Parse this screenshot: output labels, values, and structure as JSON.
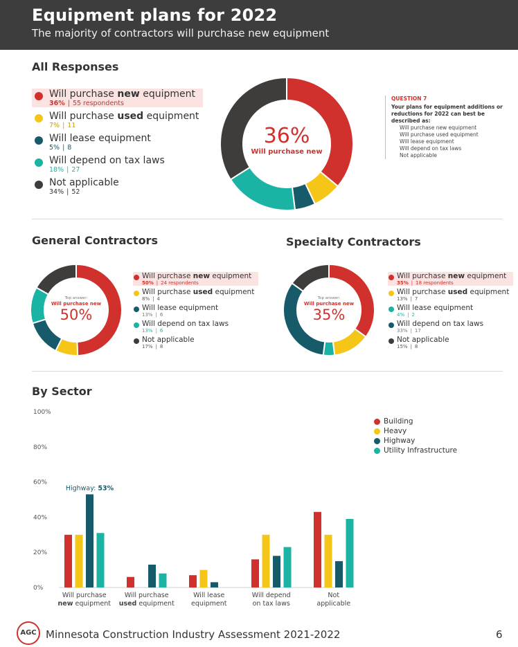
{
  "header": {
    "title": "Equipment plans for 2022",
    "subtitle": "The majority of contractors will purchase new equipment"
  },
  "colors": {
    "new": "#d0312d",
    "used": "#f5c518",
    "lease": "#175a6a",
    "tax": "#1bb3a3",
    "na": "#3f3c3c",
    "highlight_bg": "#fbe3e2"
  },
  "all": {
    "title": "All Responses",
    "center_value": "36%",
    "center_label": "Will purchase new",
    "items": [
      {
        "key": "new",
        "pre": "Will purchase ",
        "bold": "new",
        "post": " equipment",
        "pct": "36%",
        "sep": "|",
        "count": "55 respondents",
        "highlight": true
      },
      {
        "key": "used",
        "pre": "Will purchase ",
        "bold": "used",
        "post": " equipment",
        "pct": "7%",
        "sep": "|",
        "count": "11",
        "highlight": false
      },
      {
        "key": "lease",
        "pre": "Will lease equipment",
        "bold": "",
        "post": "",
        "pct": "5%",
        "sep": "|",
        "count": "8",
        "highlight": false
      },
      {
        "key": "tax",
        "pre": "Will depend on tax laws",
        "bold": "",
        "post": "",
        "pct": "18%",
        "sep": "|",
        "count": "27",
        "highlight": false
      },
      {
        "key": "na",
        "pre": "Not applicable",
        "bold": "",
        "post": "",
        "pct": "34%",
        "sep": "|",
        "count": "52",
        "highlight": false
      }
    ]
  },
  "question": {
    "label": "QUESTION 7",
    "text": "Your plans for equipment additions or reductions for 2022 can best be described as:",
    "options": [
      "Will purchase new equipment",
      "Will purchase used equipment",
      "Will lease equipment",
      "Will depend on tax laws",
      "Not applicable"
    ]
  },
  "general": {
    "title": "General Contractors",
    "center_top": "Top answer:",
    "center_label": "Will purchase new",
    "center_value": "50%",
    "items": [
      {
        "key": "new",
        "pre": "Will purchase ",
        "bold": "new",
        "post": " equipment",
        "pct": "50%",
        "sep": "|",
        "count": "24 respondents",
        "highlight": true
      },
      {
        "key": "used",
        "pre": "Will purchase ",
        "bold": "used",
        "post": " equipment",
        "pct": "8%",
        "sep": "|",
        "count": "4",
        "highlight": false
      },
      {
        "key": "lease",
        "pre": "Will lease equipment",
        "bold": "",
        "post": "",
        "pct": "13%",
        "sep": "|",
        "count": "6",
        "highlight": false
      },
      {
        "key": "tax",
        "pre": "Will depend on tax laws",
        "bold": "",
        "post": "",
        "pct": "13%",
        "sep": "|",
        "count": "6",
        "highlight": false
      },
      {
        "key": "na",
        "pre": "Not applicable",
        "bold": "",
        "post": "",
        "pct": "17%",
        "sep": "|",
        "count": "8",
        "highlight": false
      }
    ]
  },
  "specialty": {
    "title": "Specialty Contractors",
    "center_top": "Top answer:",
    "center_label": "Will purchase new",
    "center_value": "35%",
    "items": [
      {
        "key": "new",
        "pre": "Will purchase ",
        "bold": "new",
        "post": " equipment",
        "pct": "35%",
        "sep": "|",
        "count": "18 respondents",
        "highlight": true
      },
      {
        "key": "used",
        "pre": "Will purchase ",
        "bold": "used",
        "post": " equipment",
        "pct": "13%",
        "sep": "|",
        "count": "7",
        "highlight": false
      },
      {
        "key": "tax",
        "pre": "Will lease equipment",
        "bold": "",
        "post": "",
        "pct": "4%",
        "sep": "|",
        "count": "2",
        "highlight": false
      },
      {
        "key": "lease",
        "pre": "Will depend on tax laws",
        "bold": "",
        "post": "",
        "pct": "33%",
        "sep": "|",
        "count": "17",
        "highlight": false
      },
      {
        "key": "na",
        "pre": "Not applicable",
        "bold": "",
        "post": "",
        "pct": "15%",
        "sep": "|",
        "count": "8",
        "highlight": false
      }
    ]
  },
  "sector": {
    "title": "By Sector",
    "annotation_label": "Highway:",
    "annotation_value": "53%"
  },
  "chart_data": [
    {
      "type": "pie",
      "title": "All Responses",
      "categories": [
        "Will purchase new equipment",
        "Will purchase used equipment",
        "Will lease equipment",
        "Will depend on tax laws",
        "Not applicable"
      ],
      "keys": [
        "new",
        "used",
        "lease",
        "tax",
        "na"
      ],
      "values": [
        36,
        7,
        5,
        18,
        34
      ]
    },
    {
      "type": "pie",
      "title": "General Contractors",
      "categories": [
        "Will purchase new equipment",
        "Will purchase used equipment",
        "Will lease equipment",
        "Will depend on tax laws",
        "Not applicable"
      ],
      "keys": [
        "new",
        "used",
        "lease",
        "tax",
        "na"
      ],
      "values": [
        50,
        8,
        13,
        13,
        17
      ]
    },
    {
      "type": "pie",
      "title": "Specialty Contractors",
      "categories": [
        "Will purchase new equipment",
        "Will purchase used equipment",
        "Will lease equipment",
        "Will depend on tax laws",
        "Not applicable"
      ],
      "keys": [
        "new",
        "used",
        "tax",
        "lease",
        "na"
      ],
      "values": [
        35,
        13,
        4,
        33,
        15
      ]
    },
    {
      "type": "bar",
      "title": "By Sector",
      "categories": [
        {
          "line1": "Will purchase",
          "bold": "new",
          "rest": " equipment"
        },
        {
          "line1": "Will purchase",
          "bold": "used",
          "rest": " equipment"
        },
        {
          "line1": "Will lease",
          "bold": "",
          "rest": "equipment"
        },
        {
          "line1": "Will depend",
          "bold": "",
          "rest": "on tax laws"
        },
        {
          "line1": "Not",
          "bold": "",
          "rest": "applicable"
        }
      ],
      "series": [
        {
          "name": "Building",
          "color": "#d0312d",
          "values": [
            30,
            6,
            7,
            16,
            43
          ]
        },
        {
          "name": "Heavy",
          "color": "#f5c518",
          "values": [
            30,
            0,
            10,
            30,
            30
          ]
        },
        {
          "name": "Highway",
          "color": "#175a6a",
          "values": [
            53,
            13,
            3,
            18,
            15
          ]
        },
        {
          "name": "Utility Infrastructure",
          "color": "#1bb3a3",
          "values": [
            31,
            8,
            0,
            23,
            39
          ]
        }
      ],
      "ylim": [
        0,
        100
      ],
      "yticks": [
        "0%",
        "20%",
        "40%",
        "60%",
        "80%",
        "100%"
      ],
      "ytick_values": [
        0,
        20,
        40,
        60,
        80,
        100
      ],
      "grid": false,
      "legend": "top-right"
    }
  ],
  "footer": {
    "logo": "AGC",
    "text": "Minnesota Construction Industry Assessment 2021-2022",
    "page": "6"
  }
}
